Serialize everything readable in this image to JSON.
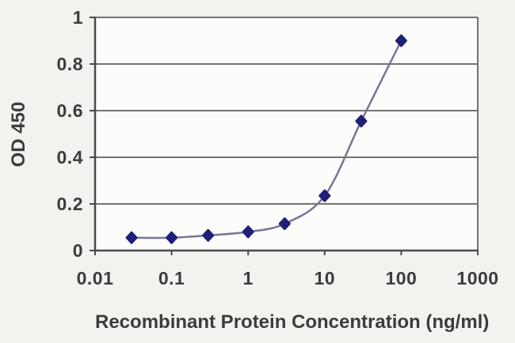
{
  "chart_data": {
    "type": "line",
    "title": "",
    "xlabel": "Recombinant Protein Concentration (ng/ml)",
    "ylabel": "OD 450",
    "x_scale": "log",
    "xlim": [
      0.01,
      1000
    ],
    "ylim": [
      0,
      1
    ],
    "x_ticks": [
      0.01,
      0.1,
      1,
      10,
      100,
      1000
    ],
    "x_tick_labels": [
      "0.01",
      "0.1",
      "1",
      "10",
      "100",
      "1000"
    ],
    "y_ticks": [
      0,
      0.2,
      0.4,
      0.6,
      0.8,
      1
    ],
    "y_tick_labels": [
      "0",
      "0.2",
      "0.4",
      "0.6",
      "0.8",
      "1"
    ],
    "grid": "horizontal",
    "legend": "none",
    "series": [
      {
        "name": "OD 450",
        "marker": "diamond",
        "x": [
          0.03,
          0.1,
          0.3,
          1,
          3,
          10,
          30,
          100
        ],
        "y": [
          0.055,
          0.055,
          0.065,
          0.08,
          0.115,
          0.235,
          0.555,
          0.9
        ]
      }
    ],
    "colors": {
      "page_bg": "#F3F2EF",
      "plot_bg": "#FCFCFB",
      "grid": "#737373",
      "axis": "#4A4A4A",
      "line": "#75759A",
      "marker": "#20207A",
      "text": "#3C3C3C"
    }
  }
}
